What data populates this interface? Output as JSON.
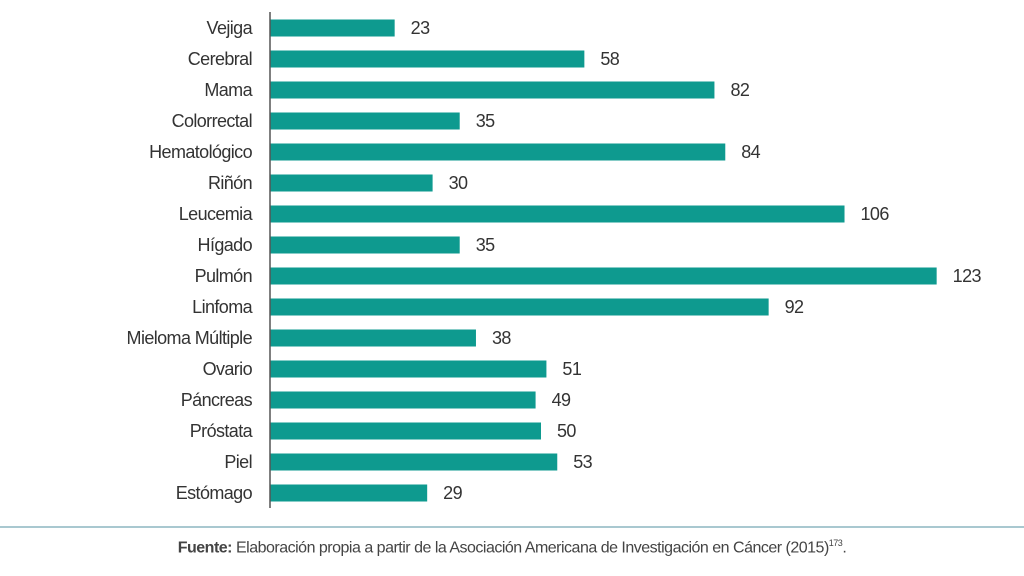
{
  "chart_data": {
    "type": "bar",
    "orientation": "horizontal",
    "categories": [
      "Vejiga",
      "Cerebral",
      "Mama",
      "Colorrectal",
      "Hematológico",
      "Riñón",
      "Leucemia",
      "Hígado",
      "Pulmón",
      "Linfoma",
      "Mieloma Múltiple",
      "Ovario",
      "Páncreas",
      "Próstata",
      "Piel",
      "Estómago"
    ],
    "values": [
      23,
      58,
      82,
      35,
      84,
      30,
      106,
      35,
      123,
      92,
      38,
      51,
      49,
      50,
      53,
      29
    ],
    "data_labels": true,
    "xlim": [
      0,
      125
    ],
    "grid": false,
    "bar_color": "#0e9a8f"
  },
  "footer": {
    "source_label": "Fuente:",
    "source_text": " Elaboración propia a partir de la Asociación Americana de Investigación en Cáncer (2015)",
    "footnote": "173",
    "end": "."
  }
}
